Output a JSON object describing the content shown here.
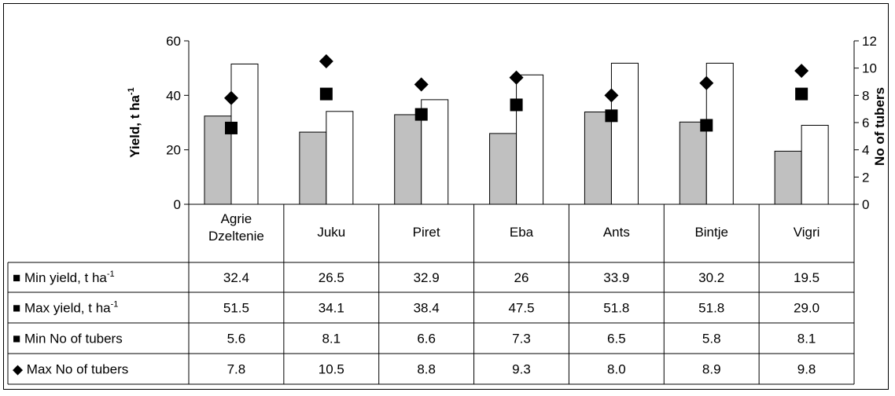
{
  "chart_data": {
    "type": "bar",
    "categories": [
      "Agrie Dzeltenie",
      "Juku",
      "Piret",
      "Eba",
      "Ants",
      "Bintje",
      "Vigri"
    ],
    "series": [
      {
        "name": "Min yield, t ha-1",
        "kind": "bar",
        "axis": "left",
        "color": "#c0c0c0",
        "values": [
          32.4,
          26.5,
          32.9,
          26,
          33.9,
          30.2,
          19.5
        ],
        "labels": [
          "32.4",
          "26.5",
          "32.9",
          "26",
          "33.9",
          "30.2",
          "19.5"
        ]
      },
      {
        "name": "Max yield, t ha-1",
        "kind": "bar",
        "axis": "left",
        "color": "#ffffff",
        "values": [
          51.5,
          34.1,
          38.4,
          47.5,
          51.8,
          51.8,
          29.0
        ],
        "labels": [
          "51.5",
          "34.1",
          "38.4",
          "47.5",
          "51.8",
          "51.8",
          "29.0"
        ]
      },
      {
        "name": "Min No of tubers",
        "kind": "square-marker",
        "axis": "right",
        "color": "#000000",
        "values": [
          5.6,
          8.1,
          6.6,
          7.3,
          6.5,
          5.8,
          8.1
        ],
        "labels": [
          "5.6",
          "8.1",
          "6.6",
          "7.3",
          "6.5",
          "5.8",
          "8.1"
        ]
      },
      {
        "name": "Max No of tubers",
        "kind": "diamond-marker",
        "axis": "right",
        "color": "#000000",
        "values": [
          7.8,
          10.5,
          8.8,
          9.3,
          8.0,
          8.9,
          9.8
        ],
        "labels": [
          "7.8",
          "10.5",
          "8.8",
          "9.3",
          "8.0",
          "8.9",
          "9.8"
        ]
      }
    ],
    "row_labels": [
      {
        "prefix": "■",
        "text": "Min yield, t ha",
        "sup": "-1"
      },
      {
        "prefix": "■",
        "text": "Max yield, t ha",
        "sup": "-1"
      },
      {
        "prefix": "■",
        "text": "Min No of tubers",
        "sup": ""
      },
      {
        "prefix": "◆",
        "text": "Max No of tubers",
        "sup": ""
      }
    ],
    "y_left": {
      "label": "Yield, t ha",
      "label_sup": "-1",
      "min": 0,
      "max": 60,
      "ticks": [
        0,
        20,
        40,
        60
      ]
    },
    "y_right": {
      "label": "No of tubers",
      "min": 0,
      "max": 12,
      "ticks": [
        0,
        2,
        4,
        6,
        8,
        10,
        12
      ]
    },
    "data_table": true,
    "grid": false,
    "legend": "in data table"
  }
}
